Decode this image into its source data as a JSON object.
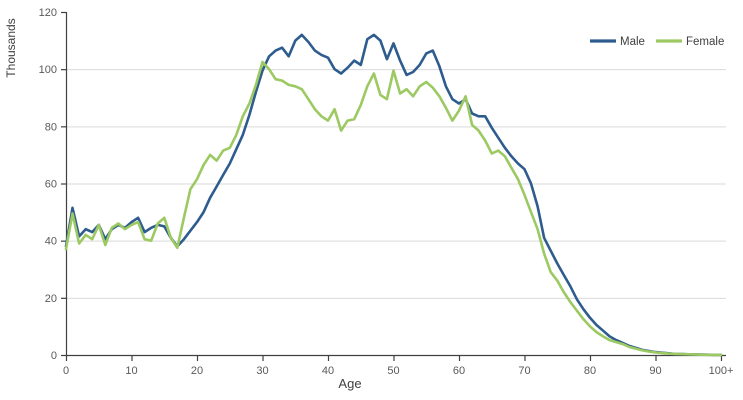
{
  "chart_data": {
    "type": "line",
    "title": "",
    "xlabel": "Age",
    "ylabel": "Thousands",
    "ylim": [
      0,
      120
    ],
    "xlim": [
      0,
      100
    ],
    "grid": "horizontal-only",
    "legend_position": "top-right-inside",
    "y_ticks": [
      0,
      20,
      40,
      60,
      80,
      100,
      120
    ],
    "x_ticks": [
      "0",
      "10",
      "20",
      "30",
      "40",
      "50",
      "60",
      "70",
      "80",
      "90",
      "100+"
    ],
    "x_tick_ages": [
      0,
      10,
      20,
      30,
      40,
      50,
      60,
      70,
      80,
      90,
      100
    ],
    "colors": {
      "male": "#2E5C8E",
      "female": "#9CC962",
      "gridline": "#D9D9D9",
      "axis": "#404040",
      "tick_text": "#595959"
    },
    "series": [
      {
        "name": "Male",
        "color": "#2E5C8E",
        "values": [
          38,
          51.5,
          41.5,
          44,
          43,
          45.5,
          40.5,
          44,
          45.5,
          44.5,
          46.5,
          48,
          43,
          44.5,
          45.5,
          45,
          41,
          38,
          40.5,
          43.5,
          46.5,
          50,
          55,
          59,
          63,
          67,
          72,
          77,
          84,
          92,
          99.5,
          104.5,
          106.5,
          107.5,
          104.5,
          110,
          112,
          109.5,
          106.5,
          105,
          104,
          100,
          98.5,
          100.5,
          103,
          101.5,
          110.5,
          112,
          110,
          103.5,
          109,
          103,
          98,
          99,
          101.5,
          105.5,
          106.5,
          101,
          94,
          89.5,
          88,
          89.5,
          84.5,
          83.5,
          83.5,
          79.5,
          76,
          72.5,
          69.5,
          67,
          65,
          60,
          52,
          41,
          36.5,
          32,
          28,
          24,
          19.5,
          16,
          13,
          10.5,
          8.5,
          6.5,
          5.2,
          4.2,
          3.2,
          2.5,
          1.8,
          1.4,
          1,
          0.8,
          0.6,
          0.4,
          0.3,
          0.25,
          0.2,
          0.15,
          0.1,
          0.05,
          0.05
        ]
      },
      {
        "name": "Female",
        "color": "#9CC962",
        "values": [
          37,
          49.5,
          39,
          42,
          40.5,
          45.5,
          38.5,
          44.5,
          46,
          44,
          45.5,
          46.5,
          40.5,
          40,
          46,
          48,
          41,
          37.5,
          48,
          58,
          61.5,
          66.5,
          70,
          68,
          71.5,
          72.5,
          77,
          83.5,
          88,
          94.5,
          102.5,
          100,
          96.5,
          96,
          94.5,
          94,
          93,
          89.5,
          86,
          83.5,
          82,
          86,
          78.5,
          82,
          82.5,
          87.5,
          94,
          98.5,
          91,
          89.5,
          99.5,
          91.5,
          93,
          90.5,
          94,
          95.5,
          93.5,
          90.5,
          86.5,
          82,
          85.5,
          90.5,
          80.5,
          78.5,
          75,
          70.5,
          71.5,
          69.5,
          65.5,
          61.5,
          56,
          50,
          44,
          35.5,
          29,
          26,
          22,
          18.5,
          15.5,
          12.5,
          10,
          8,
          6.5,
          5.2,
          4.5,
          3.8,
          2.8,
          2.2,
          1.6,
          1.2,
          0.9,
          0.7,
          0.5,
          0.4,
          0.3,
          0.25,
          0.2,
          0.12,
          0.08,
          0.05,
          0.05
        ]
      }
    ]
  }
}
